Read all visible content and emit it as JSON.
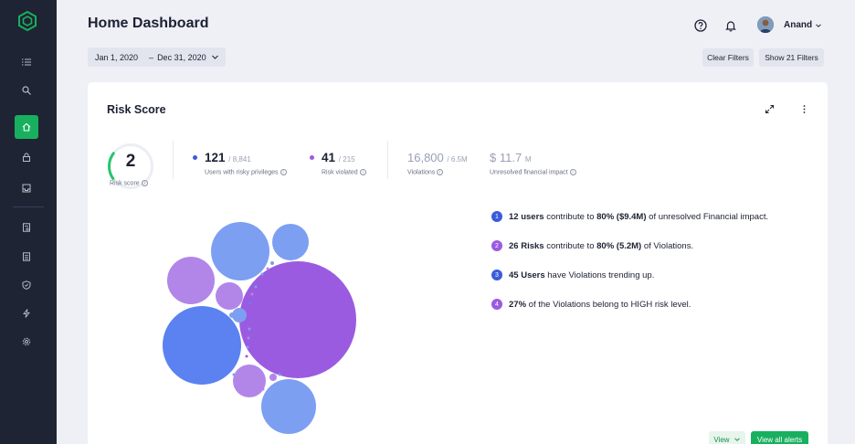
{
  "colors": {
    "sidebar": "#1e2433",
    "accent": "#18b05f",
    "blue": "#5b82f0",
    "purple": "#9b5be0",
    "light_blue": "#7c9ff2",
    "light_purple": "#b286e8"
  },
  "sidebar": {
    "logo": "hexagon-logo-icon",
    "items": [
      {
        "icon": "list-icon"
      },
      {
        "icon": "search-icon"
      },
      {
        "icon": "home-icon",
        "active": true
      },
      {
        "icon": "lock-icon"
      },
      {
        "icon": "inbox-icon"
      },
      {
        "icon": "report-icon"
      },
      {
        "icon": "document-icon"
      },
      {
        "icon": "shield-icon"
      },
      {
        "icon": "lightning-icon"
      },
      {
        "icon": "gear-icon"
      }
    ]
  },
  "header": {
    "title": "Home Dashboard",
    "user_name": "Anand",
    "help_icon": "question-circle-icon",
    "notification_icon": "bell-icon"
  },
  "filters": {
    "date_start": "Jan 1, 2020",
    "date_separator": "–",
    "date_end": "Dec 31, 2020",
    "clear_label": "Clear Filters",
    "show_label": "Show 21 Filters"
  },
  "card": {
    "title": "Risk Score",
    "gauge": {
      "value": "2",
      "label": "Risk score",
      "fraction": 0.2
    },
    "stats": [
      {
        "value": "121",
        "total": "/ 8,841",
        "label": "Users with risky privileges"
      },
      {
        "value": "41",
        "total": "/ 215",
        "label": "Risk violated"
      },
      {
        "value": "16,800",
        "total": "/ 6.5M",
        "label": "Violations"
      },
      {
        "value": "$ 11.7",
        "total": "M",
        "label": "Unresolved financial impact"
      }
    ],
    "insights": [
      {
        "num": "1",
        "bold": "12 users",
        "text1": " contribute to ",
        "bold2": "80% ($9.4M)",
        "text2": " of unresolved Financial impact."
      },
      {
        "num": "2",
        "bold": "26 Risks",
        "text1": " contribute to ",
        "bold2": "80% (5.2M)",
        "text2": " of Violations."
      },
      {
        "num": "3",
        "bold": "45 Users",
        "text1": " have Violations trending up.",
        "bold2": "",
        "text2": ""
      },
      {
        "num": "4",
        "bold": "27%",
        "text1": " of the Violations belong to HIGH risk level.",
        "bold2": "",
        "text2": ""
      }
    ],
    "view_label": "View",
    "view_all_label": "View all alerts"
  }
}
